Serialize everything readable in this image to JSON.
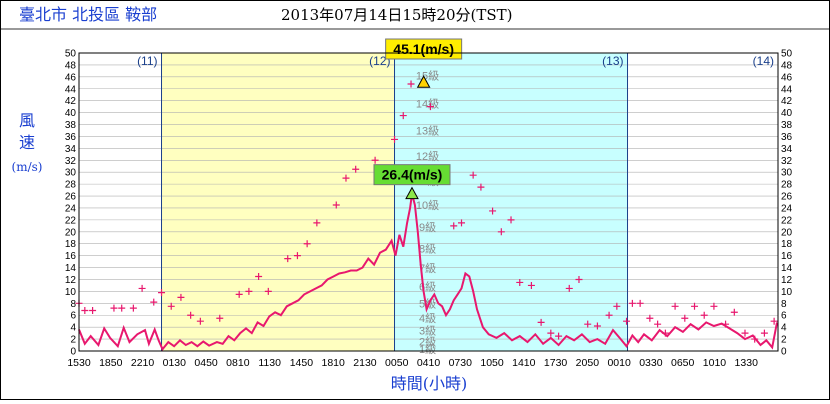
{
  "header": {
    "station": "臺北市 北投區 鞍部",
    "datetime": "2013年07月14日15時20分(TST)"
  },
  "chart_data": {
    "type": "line",
    "ylabel": [
      "風",
      "速",
      "(m/s)"
    ],
    "xlabel": "時間(小時)",
    "ylim": [
      0,
      50
    ],
    "y_ticks": [
      0,
      2,
      4,
      6,
      8,
      10,
      12,
      14,
      16,
      18,
      20,
      22,
      24,
      26,
      28,
      30,
      32,
      34,
      36,
      38,
      40,
      42,
      44,
      46,
      48,
      50
    ],
    "x_ticks": [
      "1530",
      "1850",
      "2210",
      "0130",
      "0450",
      "0810",
      "1130",
      "1450",
      "1810",
      "2130",
      "0050",
      "0410",
      "0730",
      "1050",
      "1410",
      "1730",
      "2050",
      "0010",
      "0330",
      "0650",
      "1010",
      "1330"
    ],
    "day_labels": [
      "(11)",
      "(12)",
      "(13)",
      "(14)"
    ],
    "regions": [
      {
        "from_hour": 8.5,
        "to_hour": 32.5,
        "color": "#ffffc0"
      },
      {
        "from_hour": 32.5,
        "to_hour": 56.5,
        "color": "#c8ffff"
      }
    ],
    "beaufort_labels": [
      "1級",
      "2級",
      "3級",
      "4級",
      "5級",
      "6級",
      "7級",
      "8級",
      "9級",
      "10級",
      "11級",
      "12級",
      "13級",
      "14級",
      "15級"
    ],
    "annotations": {
      "max_gust": {
        "label": "45.1(m/s)",
        "value": 45.1,
        "hour": 35.5
      },
      "max_wind": {
        "label": "26.4(m/s)",
        "value": 26.4,
        "hour": 34.3
      }
    },
    "series": [
      {
        "kind": "mean-wind",
        "color": "#e8186e",
        "points": [
          [
            0,
            3.6
          ],
          [
            0.6,
            1.2
          ],
          [
            1.2,
            2.5
          ],
          [
            2,
            1.0
          ],
          [
            2.6,
            3.8
          ],
          [
            3.2,
            2.2
          ],
          [
            4,
            0.8
          ],
          [
            4.6,
            3.9
          ],
          [
            5.2,
            1.5
          ],
          [
            6,
            2.8
          ],
          [
            6.8,
            3.5
          ],
          [
            7.2,
            1.2
          ],
          [
            7.8,
            3.6
          ],
          [
            8.2,
            1.8
          ],
          [
            8.6,
            0.3
          ],
          [
            9.2,
            1.5
          ],
          [
            9.8,
            0.8
          ],
          [
            10.4,
            1.8
          ],
          [
            11,
            1.0
          ],
          [
            11.6,
            1.5
          ],
          [
            12.2,
            0.8
          ],
          [
            12.8,
            1.6
          ],
          [
            13.4,
            0.9
          ],
          [
            14.2,
            1.5
          ],
          [
            14.8,
            1.2
          ],
          [
            15.4,
            2.5
          ],
          [
            16,
            1.8
          ],
          [
            16.6,
            3.0
          ],
          [
            17.2,
            3.8
          ],
          [
            17.8,
            3.0
          ],
          [
            18.4,
            4.8
          ],
          [
            19,
            4.2
          ],
          [
            19.6,
            5.8
          ],
          [
            20.2,
            6.5
          ],
          [
            20.8,
            6.0
          ],
          [
            21.4,
            7.5
          ],
          [
            22,
            8.0
          ],
          [
            22.6,
            8.5
          ],
          [
            23.2,
            9.5
          ],
          [
            23.8,
            10.0
          ],
          [
            24.4,
            10.5
          ],
          [
            25,
            11.0
          ],
          [
            25.6,
            12.0
          ],
          [
            26.2,
            12.5
          ],
          [
            26.8,
            13.0
          ],
          [
            27.4,
            13.2
          ],
          [
            28,
            13.5
          ],
          [
            28.6,
            13.5
          ],
          [
            29.2,
            14.0
          ],
          [
            29.8,
            15.5
          ],
          [
            30.4,
            14.5
          ],
          [
            31,
            16.5
          ],
          [
            31.6,
            17.0
          ],
          [
            32.2,
            18.5
          ],
          [
            32.6,
            16.0
          ],
          [
            33,
            19.5
          ],
          [
            33.4,
            17.5
          ],
          [
            33.8,
            21.5
          ],
          [
            34.1,
            24.0
          ],
          [
            34.3,
            26.4
          ],
          [
            34.6,
            24.5
          ],
          [
            34.9,
            20.0
          ],
          [
            35.2,
            14.5
          ],
          [
            35.5,
            10.0
          ],
          [
            35.8,
            7.0
          ],
          [
            36.2,
            8.5
          ],
          [
            36.6,
            9.5
          ],
          [
            37,
            8.0
          ],
          [
            37.4,
            7.5
          ],
          [
            37.8,
            6.0
          ],
          [
            38.2,
            7.0
          ],
          [
            38.6,
            8.5
          ],
          [
            39,
            9.5
          ],
          [
            39.4,
            10.5
          ],
          [
            39.8,
            13.0
          ],
          [
            40.2,
            12.5
          ],
          [
            40.6,
            10.0
          ],
          [
            41,
            7.0
          ],
          [
            41.6,
            4.0
          ],
          [
            42.2,
            2.8
          ],
          [
            43,
            2.2
          ],
          [
            43.8,
            3.0
          ],
          [
            44.6,
            1.8
          ],
          [
            45.4,
            2.5
          ],
          [
            46.2,
            1.5
          ],
          [
            47,
            2.8
          ],
          [
            47.8,
            1.2
          ],
          [
            48.6,
            2.2
          ],
          [
            49.4,
            1.0
          ],
          [
            50.2,
            2.5
          ],
          [
            51,
            1.8
          ],
          [
            51.8,
            2.8
          ],
          [
            52.6,
            1.5
          ],
          [
            53.4,
            2.0
          ],
          [
            54.2,
            1.2
          ],
          [
            55,
            3.5
          ],
          [
            55.8,
            2.0
          ],
          [
            56.4,
            0.8
          ],
          [
            57,
            2.6
          ],
          [
            57.6,
            1.5
          ],
          [
            58.2,
            2.8
          ],
          [
            59,
            1.8
          ],
          [
            59.8,
            3.5
          ],
          [
            60.6,
            2.5
          ],
          [
            61.4,
            4.0
          ],
          [
            62.2,
            3.2
          ],
          [
            63,
            4.5
          ],
          [
            63.8,
            3.6
          ],
          [
            64.6,
            4.8
          ],
          [
            65.4,
            4.2
          ],
          [
            66.2,
            4.6
          ],
          [
            67,
            3.8
          ],
          [
            67.8,
            3.0
          ],
          [
            68.6,
            2.0
          ],
          [
            69.4,
            2.6
          ],
          [
            70.2,
            1.0
          ],
          [
            70.8,
            1.8
          ],
          [
            71.4,
            0.6
          ],
          [
            71.9,
            4.8
          ]
        ]
      },
      {
        "kind": "gust",
        "color": "#e8186e",
        "points": [
          [
            0,
            8.0
          ],
          [
            0.6,
            6.8
          ],
          [
            1.4,
            6.8
          ],
          [
            3.6,
            7.2
          ],
          [
            4.4,
            7.2
          ],
          [
            5.6,
            7.2
          ],
          [
            6.5,
            10.5
          ],
          [
            7.7,
            8.2
          ],
          [
            8.5,
            9.8
          ],
          [
            9.5,
            7.5
          ],
          [
            10.5,
            9.0
          ],
          [
            11.5,
            6.0
          ],
          [
            12.5,
            5.0
          ],
          [
            14.5,
            5.5
          ],
          [
            16.5,
            9.5
          ],
          [
            17.5,
            10.0
          ],
          [
            18.5,
            12.5
          ],
          [
            19.5,
            10.0
          ],
          [
            21.5,
            15.5
          ],
          [
            22.5,
            16.0
          ],
          [
            23.5,
            18.0
          ],
          [
            24.5,
            21.5
          ],
          [
            26.5,
            24.5
          ],
          [
            27.5,
            29.0
          ],
          [
            28.5,
            30.5
          ],
          [
            30.5,
            32.0
          ],
          [
            31.5,
            30.5
          ],
          [
            32.5,
            35.5
          ],
          [
            33.4,
            39.5
          ],
          [
            34.2,
            44.8
          ],
          [
            35.5,
            45.1
          ],
          [
            36.2,
            41.0
          ],
          [
            37.4,
            29.0
          ],
          [
            38.6,
            21.0
          ],
          [
            39.4,
            21.5
          ],
          [
            40.6,
            29.5
          ],
          [
            41.4,
            27.5
          ],
          [
            42.6,
            23.5
          ],
          [
            43.5,
            20.0
          ],
          [
            44.5,
            22.0
          ],
          [
            45.4,
            11.5
          ],
          [
            46.6,
            11.0
          ],
          [
            47.6,
            4.8
          ],
          [
            48.6,
            3.0
          ],
          [
            49.4,
            2.5
          ],
          [
            50.5,
            10.5
          ],
          [
            51.5,
            12.0
          ],
          [
            52.4,
            4.5
          ],
          [
            53.4,
            4.2
          ],
          [
            54.6,
            6.0
          ],
          [
            55.4,
            7.5
          ],
          [
            56.4,
            5.0
          ],
          [
            57,
            8.0
          ],
          [
            57.8,
            8.0
          ],
          [
            58.8,
            5.5
          ],
          [
            59.6,
            4.5
          ],
          [
            60.4,
            3.0
          ],
          [
            61.4,
            7.5
          ],
          [
            62.4,
            5.5
          ],
          [
            63.4,
            7.5
          ],
          [
            64.4,
            6.0
          ],
          [
            65.4,
            7.5
          ],
          [
            66.6,
            4.5
          ],
          [
            67.5,
            6.5
          ],
          [
            68.6,
            3.0
          ],
          [
            69.6,
            2.0
          ],
          [
            70.6,
            3.0
          ],
          [
            71.6,
            5.0
          ]
        ]
      }
    ]
  }
}
